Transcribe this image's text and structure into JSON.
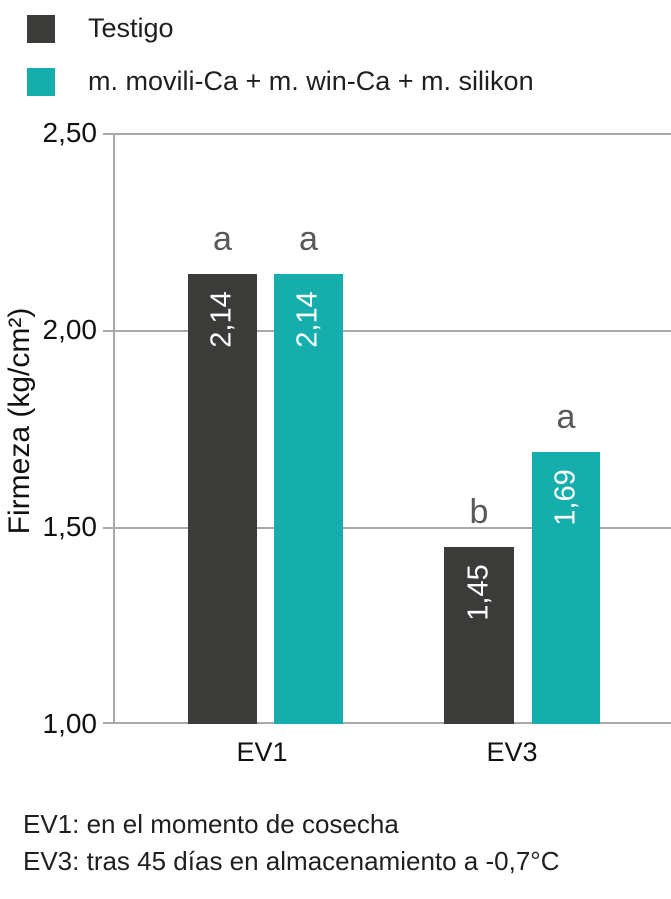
{
  "legend": {
    "items": [
      {
        "label": "Testigo",
        "color": "#3b3b3a"
      },
      {
        "label": "m. movili-Ca + m. win-Ca + m. silikon",
        "color": "#16aeac"
      }
    ]
  },
  "chart_data": {
    "type": "bar",
    "title": "",
    "xlabel": "",
    "ylabel": "Firmeza (kg/cm²)",
    "categories": [
      "EV1",
      "EV3"
    ],
    "series": [
      {
        "name": "Testigo",
        "color": "#3b3b3a",
        "values": [
          2.14,
          1.45
        ],
        "value_labels": [
          "2,14",
          "1,45"
        ],
        "sig_letters": [
          "a",
          "b"
        ]
      },
      {
        "name": "m. movili-Ca + m. win-Ca + m. silikon",
        "color": "#16aeac",
        "values": [
          2.14,
          1.69
        ],
        "value_labels": [
          "2,14",
          "1,69"
        ],
        "sig_letters": [
          "a",
          "a"
        ]
      }
    ],
    "ylim": [
      1.0,
      2.5
    ],
    "ytick_step": 0.5,
    "yticks": [
      "2,50",
      "2,00",
      "1,50",
      "1,00"
    ],
    "grid": true,
    "legend_position": "top-left",
    "value_label_color": "#ffffff",
    "sig_letter_color": "#595959",
    "gridline_color": "#a9a9a9"
  },
  "footnotes": [
    "EV1: en el momento de cosecha",
    "EV3: tras 45 días en almacenamiento a -0,7°C"
  ]
}
